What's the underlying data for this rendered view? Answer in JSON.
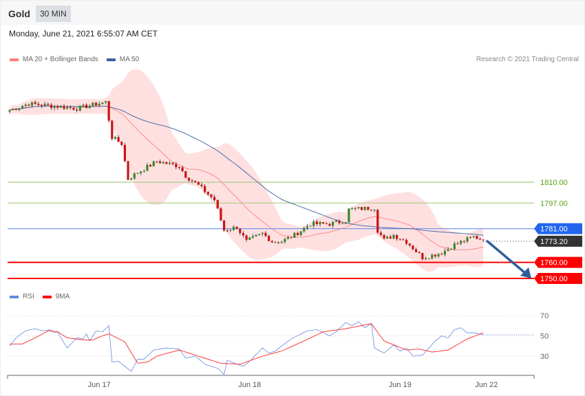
{
  "header": {
    "instrument": "Gold",
    "timeframe": "30 MIN"
  },
  "timestamp": "Monday, June 21, 2021 6:55:07 AM CET",
  "legend": {
    "ma20": "MA 20 + Bollinger Bands",
    "ma50": "MA 50",
    "rsi": "RSI",
    "ma9": "9MA"
  },
  "credit": "Research © 2021 Trading Central",
  "colors": {
    "ma20": "#ff8080",
    "ma50": "#3a5f9f",
    "rsi": "#6688dd",
    "ma9": "#ff0000",
    "up": "#3a8a2a",
    "down": "#cc1111",
    "resistance": "#66aa22",
    "pivot": "#2266ee",
    "support": "#ff0000",
    "last": "#333333"
  },
  "chart_data": {
    "type": "candlestick",
    "price_axis": {
      "min": 1740,
      "max": 1880
    },
    "close_keypoints": [
      [
        0,
        1855
      ],
      [
        6,
        1859
      ],
      [
        16,
        1857
      ],
      [
        21,
        1856
      ],
      [
        30,
        1860
      ],
      [
        32,
        1838
      ],
      [
        35,
        1834
      ],
      [
        37,
        1812
      ],
      [
        40,
        1816
      ],
      [
        46,
        1823
      ],
      [
        53,
        1820
      ],
      [
        55,
        1814
      ],
      [
        59,
        1808
      ],
      [
        64,
        1799
      ],
      [
        67,
        1780
      ],
      [
        71,
        1782
      ],
      [
        74,
        1773
      ],
      [
        79,
        1778
      ],
      [
        82,
        1773
      ],
      [
        85,
        1773
      ],
      [
        89,
        1777
      ],
      [
        94,
        1784
      ],
      [
        100,
        1784
      ],
      [
        105,
        1786
      ],
      [
        106,
        1793
      ],
      [
        114,
        1794
      ],
      [
        115,
        1780
      ],
      [
        117,
        1774
      ],
      [
        120,
        1777
      ],
      [
        124,
        1773
      ],
      [
        129,
        1763
      ],
      [
        135,
        1766
      ],
      [
        139,
        1771
      ],
      [
        145,
        1776
      ],
      [
        148,
        1774
      ]
    ],
    "levels": [
      {
        "label": "1810.00",
        "value": 1810,
        "type": "resistance"
      },
      {
        "label": "1797.00",
        "value": 1797,
        "type": "resistance"
      },
      {
        "label": "1781.00",
        "value": 1781,
        "type": "pivot"
      },
      {
        "label": "1773.20",
        "value": 1773.2,
        "type": "last"
      },
      {
        "label": "1760.00",
        "value": 1760,
        "type": "support"
      },
      {
        "label": "1750.00",
        "value": 1750,
        "type": "support"
      }
    ],
    "x_labels": [
      {
        "label": "Jun 17",
        "index": 28
      },
      {
        "label": "Jun 18",
        "index": 75
      },
      {
        "label": "Jun 19",
        "index": 122
      },
      {
        "label": "Jun 22",
        "index": 149
      }
    ],
    "rsi": {
      "ticks": [
        {
          "label": "70",
          "value": 70
        },
        {
          "label": "50",
          "value": 50
        },
        {
          "label": "30",
          "value": 30
        }
      ],
      "rsi_keypoints": [
        [
          0,
          40
        ],
        [
          2,
          48
        ],
        [
          5,
          55
        ],
        [
          8,
          57
        ],
        [
          10,
          55
        ],
        [
          13,
          56
        ],
        [
          14,
          53
        ],
        [
          15,
          54
        ],
        [
          16,
          48
        ],
        [
          18,
          38
        ],
        [
          21,
          48
        ],
        [
          23,
          47
        ],
        [
          24,
          52
        ],
        [
          25,
          45
        ],
        [
          27,
          55
        ],
        [
          29,
          54
        ],
        [
          31,
          60
        ],
        [
          32,
          24
        ],
        [
          34,
          25
        ],
        [
          36,
          20
        ],
        [
          38,
          15
        ],
        [
          40,
          27
        ],
        [
          42,
          27
        ],
        [
          45,
          36
        ],
        [
          49,
          38
        ],
        [
          53,
          37
        ],
        [
          55,
          28
        ],
        [
          58,
          30
        ],
        [
          61,
          22
        ],
        [
          65,
          18
        ],
        [
          67,
          12
        ],
        [
          68,
          26
        ],
        [
          71,
          22
        ],
        [
          73,
          20
        ],
        [
          75,
          25
        ],
        [
          79,
          38
        ],
        [
          81,
          33
        ],
        [
          83,
          35
        ],
        [
          85,
          40
        ],
        [
          88,
          47
        ],
        [
          93,
          55
        ],
        [
          96,
          56
        ],
        [
          100,
          50
        ],
        [
          102,
          54
        ],
        [
          105,
          63
        ],
        [
          107,
          60
        ],
        [
          109,
          64
        ],
        [
          111,
          58
        ],
        [
          113,
          62
        ],
        [
          114,
          38
        ],
        [
          117,
          33
        ],
        [
          120,
          41
        ],
        [
          122,
          35
        ],
        [
          124,
          38
        ],
        [
          126,
          30
        ],
        [
          129,
          31
        ],
        [
          133,
          45
        ],
        [
          135,
          50
        ],
        [
          137,
          48
        ],
        [
          139,
          56
        ],
        [
          141,
          58
        ],
        [
          143,
          53
        ],
        [
          145,
          53
        ],
        [
          148,
          51
        ]
      ],
      "ma9_keypoints": [
        [
          0,
          42
        ],
        [
          4,
          42
        ],
        [
          8,
          48
        ],
        [
          12,
          55
        ],
        [
          15,
          54
        ],
        [
          18,
          48
        ],
        [
          23,
          46
        ],
        [
          26,
          46
        ],
        [
          29,
          50
        ],
        [
          31,
          52
        ],
        [
          36,
          44
        ],
        [
          40,
          23
        ],
        [
          43,
          24
        ],
        [
          46,
          30
        ],
        [
          53,
          36
        ],
        [
          59,
          30
        ],
        [
          66,
          23
        ],
        [
          72,
          22
        ],
        [
          79,
          30
        ],
        [
          85,
          35
        ],
        [
          92,
          45
        ],
        [
          98,
          54
        ],
        [
          105,
          57
        ],
        [
          113,
          62
        ],
        [
          117,
          45
        ],
        [
          124,
          36
        ],
        [
          128,
          37
        ],
        [
          132,
          34
        ],
        [
          137,
          36
        ],
        [
          143,
          47
        ],
        [
          148,
          53
        ]
      ]
    }
  },
  "arrow": {
    "direction": "down",
    "target": "1750.00"
  }
}
